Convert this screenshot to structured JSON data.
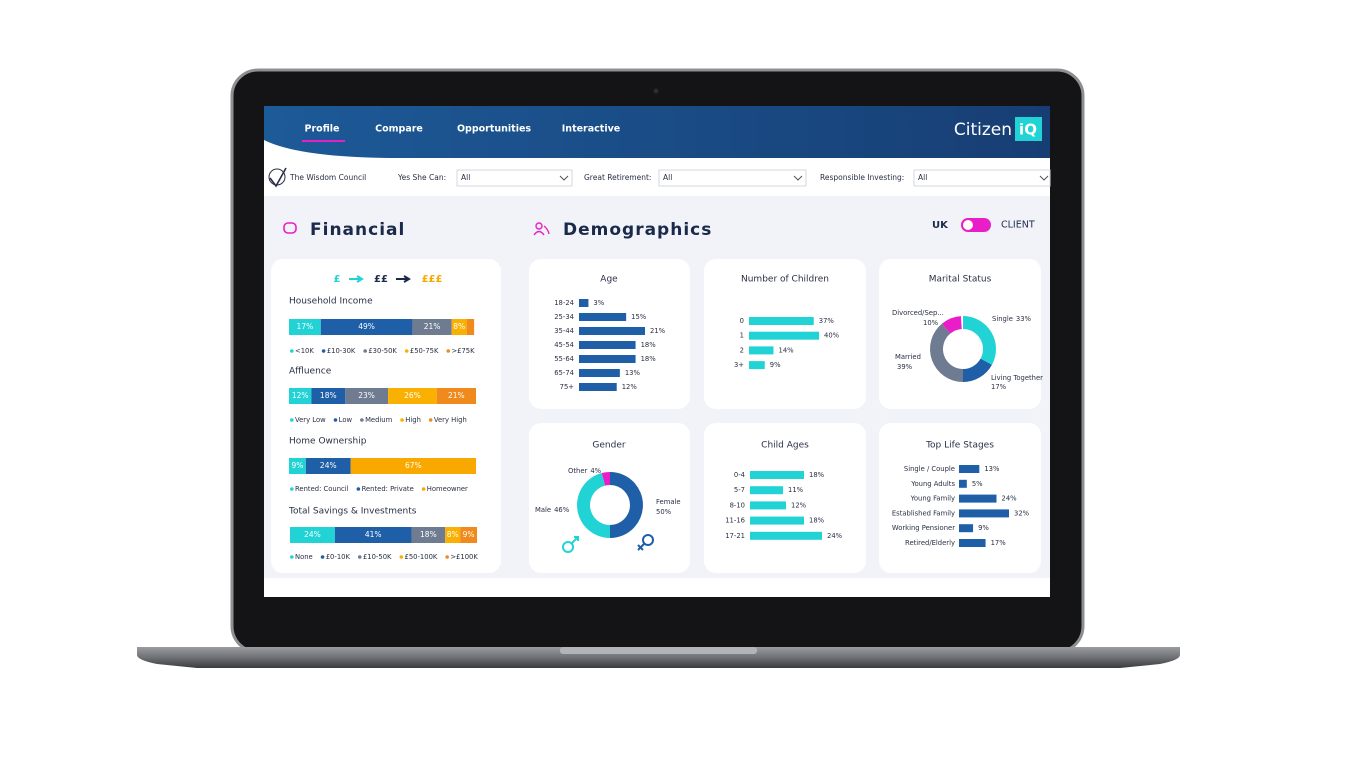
{
  "nav": {
    "tabs": [
      "Profile",
      "Compare",
      "Opportunities",
      "Interactive"
    ]
  },
  "brand": {
    "name": "Citizen",
    "badge": "iQ"
  },
  "filters": {
    "org": "The Wisdom Council",
    "items": [
      {
        "label": "Yes She Can:",
        "value": "All"
      },
      {
        "label": "Great Retirement:",
        "value": "All"
      },
      {
        "label": "Responsible Investing:",
        "value": "All"
      }
    ]
  },
  "toggle": {
    "left": "UK",
    "right": "CLIENT"
  },
  "sections": {
    "financial": "Financial",
    "demographics": "Demographics"
  },
  "financial_scale": [
    "£",
    "££",
    "£££"
  ],
  "chart_data": [
    {
      "type": "stacked_bar",
      "title": "Household Income",
      "series": [
        {
          "name": "<10K",
          "color": "#22d3d6",
          "values": [
            17
          ],
          "value_labels": [
            "17%"
          ]
        },
        {
          "name": "£10-30K",
          "color": "#1f5fa8",
          "values": [
            49
          ],
          "value_labels": [
            "49%"
          ]
        },
        {
          "name": "£30-50K",
          "color": "#6e7b91",
          "values": [
            21
          ],
          "value_labels": [
            "21%"
          ]
        },
        {
          "name": "£50-75K",
          "color": "#f9b000",
          "values": [
            8
          ],
          "value_labels": [
            "8%"
          ]
        },
        {
          "name": ">£75K",
          "color": "#f08a1c",
          "values": [
            4
          ],
          "value_labels": [
            null
          ]
        }
      ]
    },
    {
      "type": "stacked_bar",
      "title": "Affluence",
      "series": [
        {
          "name": "Very Low",
          "color": "#22d3d6",
          "values": [
            12
          ],
          "value_labels": [
            "12%"
          ]
        },
        {
          "name": "Low",
          "color": "#1f5fa8",
          "values": [
            18
          ],
          "value_labels": [
            "18%"
          ]
        },
        {
          "name": "Medium",
          "color": "#6e7b91",
          "values": [
            23
          ],
          "value_labels": [
            "23%"
          ]
        },
        {
          "name": "High",
          "color": "#f9b000",
          "values": [
            26
          ],
          "value_labels": [
            "26%"
          ]
        },
        {
          "name": "Very High",
          "color": "#f08a1c",
          "values": [
            21
          ],
          "value_labels": [
            "21%"
          ]
        }
      ]
    },
    {
      "type": "stacked_bar",
      "title": "Home Ownership",
      "series": [
        {
          "name": "Rented: Council",
          "color": "#22d3d6",
          "values": [
            9
          ],
          "value_labels": [
            "9%"
          ]
        },
        {
          "name": "Rented: Private",
          "color": "#1f5fa8",
          "values": [
            24
          ],
          "value_labels": [
            "24%"
          ]
        },
        {
          "name": "Homeowner",
          "color": "#f9a800",
          "values": [
            67
          ],
          "value_labels": [
            "67%"
          ]
        }
      ]
    },
    {
      "type": "stacked_bar",
      "title": "Total Savings & Investments",
      "series": [
        {
          "name": "None",
          "color": "#22d3d6",
          "values": [
            24
          ],
          "value_labels": [
            "24%"
          ]
        },
        {
          "name": "£0-10K",
          "color": "#1f5fa8",
          "values": [
            41
          ],
          "value_labels": [
            "41%"
          ]
        },
        {
          "name": "£10-50K",
          "color": "#6e7b91",
          "values": [
            18
          ],
          "value_labels": [
            "18%"
          ]
        },
        {
          "name": "£50-100K",
          "color": "#f9b000",
          "values": [
            8
          ],
          "value_labels": [
            "8%"
          ]
        },
        {
          "name": ">£100K",
          "color": "#f08a1c",
          "values": [
            9
          ],
          "value_labels": [
            "9%"
          ]
        }
      ]
    },
    {
      "type": "bar",
      "title": "Age",
      "color": "#1f5fa8",
      "categories": [
        "18-24",
        "25-34",
        "35-44",
        "45-54",
        "55-64",
        "65-74",
        "75+"
      ],
      "values": [
        3,
        15,
        21,
        18,
        18,
        13,
        12
      ],
      "value_labels": [
        "3%",
        "15%",
        "21%",
        "18%",
        "18%",
        "13%",
        "12%"
      ]
    },
    {
      "type": "bar",
      "title": "Number of Children",
      "color": "#22d3d6",
      "categories": [
        "0",
        "1",
        "2",
        "3+"
      ],
      "values": [
        37,
        40,
        14,
        9
      ],
      "value_labels": [
        "37%",
        "40%",
        "14%",
        "9%"
      ]
    },
    {
      "type": "donut",
      "title": "Marital Status",
      "categories": [
        "Single",
        "Living Together",
        "Married",
        "Divorced/Sep..."
      ],
      "values": [
        33,
        17,
        39,
        10
      ],
      "value_labels": [
        "33%",
        "17%",
        "39%",
        "10%"
      ],
      "colors": [
        "#22d3d6",
        "#1f5fa8",
        "#6e7b91",
        "#e91ec8"
      ]
    },
    {
      "type": "donut",
      "title": "Gender",
      "categories": [
        "Female",
        "Male",
        "Other"
      ],
      "values": [
        50,
        46,
        4
      ],
      "value_labels": [
        "50%",
        "46%",
        "4%"
      ],
      "colors": [
        "#1f5fa8",
        "#22d3d6",
        "#e91ec8"
      ]
    },
    {
      "type": "bar",
      "title": "Child Ages",
      "color": "#22d3d6",
      "categories": [
        "0-4",
        "5-7",
        "8-10",
        "11-16",
        "17-21"
      ],
      "values": [
        18,
        11,
        12,
        18,
        24
      ],
      "value_labels": [
        "18%",
        "11%",
        "12%",
        "18%",
        "24%"
      ]
    },
    {
      "type": "bar",
      "title": "Top Life Stages",
      "color": "#1f5fa8",
      "categories": [
        "Single / Couple",
        "Young Adults",
        "Young Family",
        "Established Family",
        "Working Pensioner",
        "Retired/Elderly"
      ],
      "values": [
        13,
        5,
        24,
        32,
        9,
        17
      ],
      "value_labels": [
        "13%",
        "5%",
        "24%",
        "32%",
        "9%",
        "17%"
      ]
    }
  ]
}
